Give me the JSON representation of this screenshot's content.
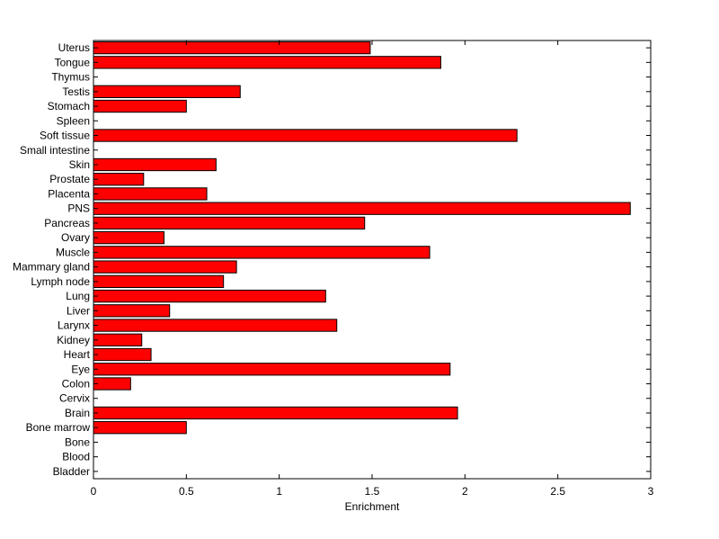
{
  "chart_data": {
    "type": "bar",
    "orientation": "horizontal",
    "title": "",
    "xlabel": "Enrichment",
    "ylabel": "",
    "xlim": [
      0,
      3
    ],
    "xticks": [
      "0",
      "0.5",
      "1",
      "1.5",
      "2",
      "2.5",
      "3"
    ],
    "grid": false,
    "legend": "none",
    "bar_color": "#ff0000",
    "edge_color": "#000000",
    "categories": [
      "Uterus",
      "Tongue",
      "Thymus",
      "Testis",
      "Stomach",
      "Spleen",
      "Soft tissue",
      "Small intestine",
      "Skin",
      "Prostate",
      "Placenta",
      "PNS",
      "Pancreas",
      "Ovary",
      "Muscle",
      "Mammary gland",
      "Lymph node",
      "Lung",
      "Liver",
      "Larynx",
      "Kidney",
      "Heart",
      "Eye",
      "Colon",
      "Cervix",
      "Brain",
      "Bone marrow",
      "Bone",
      "Blood",
      "Bladder"
    ],
    "values": [
      1.49,
      1.87,
      0,
      0.79,
      0.5,
      0,
      2.28,
      0,
      0.66,
      0.27,
      0.61,
      2.89,
      1.46,
      0.38,
      1.81,
      0.77,
      0.7,
      1.25,
      0.41,
      1.31,
      0.26,
      0.31,
      1.92,
      0.2,
      0,
      1.96,
      0.5,
      0,
      0,
      0
    ]
  }
}
